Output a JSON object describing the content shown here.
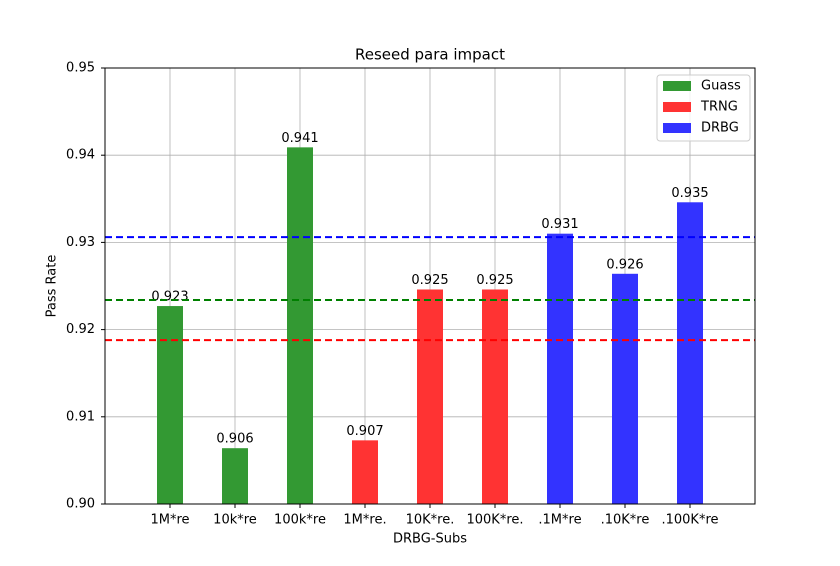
{
  "chart_data": {
    "type": "bar",
    "title": "Reseed para impact",
    "x_label": "DRBG-Subs",
    "y_label": "Pass Rate",
    "categories": [
      "1M*re",
      "10k*re",
      "100k*re",
      "1M*re.",
      "10K*re.",
      "100K*re.",
      ".1M*re",
      ".10K*re",
      ".100K*re"
    ],
    "series": [
      {
        "name": "Guass",
        "color": "#339933",
        "values": [
          0.9227,
          0.9064,
          0.9409,
          null,
          null,
          null,
          null,
          null,
          null
        ],
        "value_labels": [
          "0.923",
          "0.906",
          "0.941",
          null,
          null,
          null,
          null,
          null,
          null
        ]
      },
      {
        "name": "TRNG",
        "color": "#ff3333",
        "values": [
          null,
          null,
          null,
          0.9073,
          0.9246,
          0.9246,
          null,
          null,
          null
        ],
        "value_labels": [
          null,
          null,
          null,
          "0.907",
          "0.925",
          "0.925",
          null,
          null,
          null
        ]
      },
      {
        "name": "DRBG",
        "color": "#3333ff",
        "values": [
          null,
          null,
          null,
          null,
          null,
          null,
          0.931,
          0.9264,
          0.9346
        ],
        "value_labels": [
          null,
          null,
          null,
          null,
          null,
          null,
          "0.931",
          "0.926",
          "0.935"
        ]
      }
    ],
    "hlines": [
      {
        "value": 0.9306,
        "color": "#0000ff"
      },
      {
        "value": 0.9234,
        "color": "#008000"
      },
      {
        "value": 0.9188,
        "color": "#ff0000"
      }
    ],
    "ylim": [
      0.9,
      0.95
    ],
    "yticks": [
      {
        "value": 0.9,
        "label": "0.90"
      },
      0.91,
      0.92,
      0.93,
      0.94,
      0.95
    ],
    "grid": true,
    "legend": "upper right"
  }
}
